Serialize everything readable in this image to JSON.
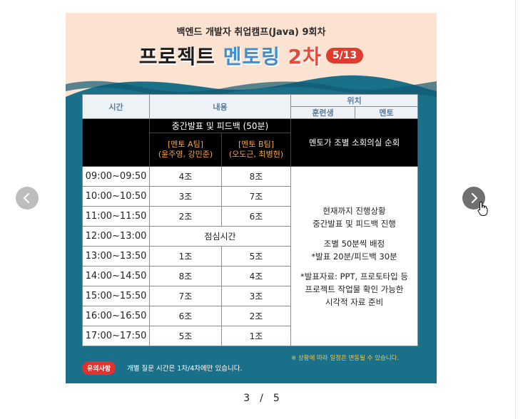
{
  "slide": {
    "subtitle": "백엔드 개발자 취업캠프(Java) 9회차",
    "title_part1": "프로젝트",
    "title_part2": "멘토링",
    "title_part3": "2차",
    "date_badge": "5/13"
  },
  "table": {
    "headers": {
      "time": "시간",
      "content": "내용",
      "location": "위치",
      "trainee": "훈련생",
      "mentor": "멘토"
    },
    "midterm": "중간발표 및 피드백 (50분)",
    "team_a": "[멘토 A팀]\n(윤주영, 강민준)",
    "team_b": "[멘토 B팀]\n(오도근, 최병현)",
    "mentor_rounds": "멘토가 조별 소회의실 순회",
    "rows": [
      {
        "time": "09:00~09:50",
        "a": "4조",
        "b": "8조"
      },
      {
        "time": "10:00~10:50",
        "a": "3조",
        "b": "7조"
      },
      {
        "time": "11:00~11:50",
        "a": "2조",
        "b": "6조"
      },
      {
        "time": "12:00~13:00",
        "lunch": "점심시간"
      },
      {
        "time": "13:00~13:50",
        "a": "1조",
        "b": "5조"
      },
      {
        "time": "14:00~14:50",
        "a": "8조",
        "b": "4조"
      },
      {
        "time": "15:00~15:50",
        "a": "7조",
        "b": "3조"
      },
      {
        "time": "16:00~16:50",
        "a": "6조",
        "b": "2조"
      },
      {
        "time": "17:00~17:50",
        "a": "5조",
        "b": "1조"
      }
    ],
    "info": {
      "line1": "현재까지 진행상황",
      "line2": "중간발표 및 피드백 진행",
      "line3": "조별 50분씩 배정",
      "line4": "*발표 20분/피드백 30분",
      "line5": "*발표자료: PPT, 프로토타입 등",
      "line6": "프로젝트 작업물 확인 가능한",
      "line7": "시각적 자료 준비"
    }
  },
  "notes": {
    "change": "※ 상황에 따라 일정은 변동될 수 있습니다.",
    "badge": "유의사항",
    "text": "개별 질문 시간은 1차/4차에만 있습니다."
  },
  "pager": {
    "current": "3",
    "separator": "/",
    "total": "5"
  },
  "colors": {
    "slide_bg": "#fbe2d1",
    "wave_teal": "#1a6f89",
    "badge_red": "#df3c30",
    "mentoring_blue": "#3f8ed0"
  }
}
